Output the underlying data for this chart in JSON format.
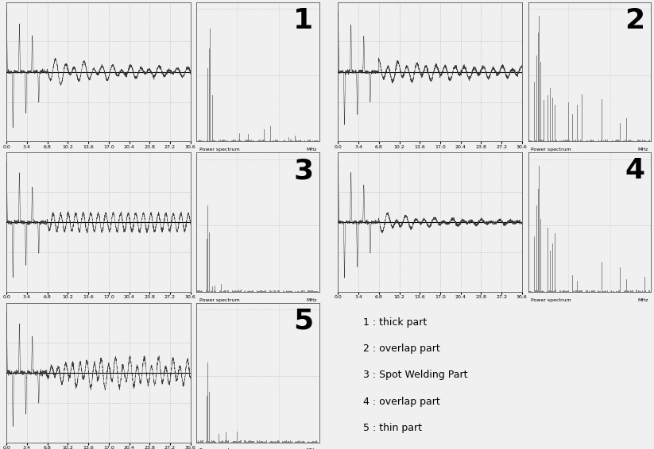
{
  "background_color": "#f0f0f0",
  "plot_bg": "#f0f0f0",
  "signal_color": "#333333",
  "bar_color": "#888888",
  "grid_color": "#aaaaaa",
  "legend": [
    "1 : thick part",
    "2 : overlap part",
    "3 : Spot Welding Part",
    "4 : overlap part",
    "5 : thin part"
  ],
  "x_tick_labels": [
    "0.0",
    "3.4",
    "6.8",
    "10.2",
    "13.6",
    "17.0",
    "20.4",
    "23.8",
    "27.2",
    "30.6"
  ],
  "x_tick_vals": [
    0.0,
    3.4,
    6.8,
    10.2,
    13.6,
    17.0,
    20.4,
    23.8,
    27.2,
    30.6
  ],
  "fft_xlabel": "Power spectrum",
  "fft_xlabel_right": "MHz",
  "number_fontsize": 26,
  "legend_fontsize": 9,
  "tick_fontsize": 4.5
}
